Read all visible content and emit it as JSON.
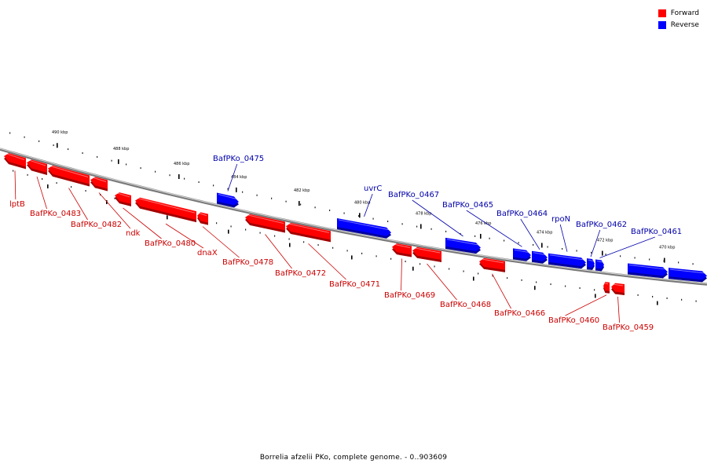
{
  "title": "Borrelia afzelii PKo, complete genome. - 0..903609",
  "colors": {
    "forward": "#ff0000",
    "reverse": "#0000ff",
    "forward_label": "#cc0000",
    "reverse_label": "#0000aa",
    "backbone": "#999999"
  },
  "legend": [
    {
      "label": "Forward",
      "color": "#ff0000"
    },
    {
      "label": "Reverse",
      "color": "#0000ff"
    }
  ],
  "ticks": [
    "490 kbp",
    "488 kbp",
    "486 kbp",
    "484 kbp",
    "482 kbp",
    "480 kbp",
    "478 kbp",
    "476 kbp",
    "474 kbp",
    "472 kbp",
    "470 kbp"
  ],
  "genes": [
    {
      "name": "lptB",
      "strand": "forward"
    },
    {
      "name": "BafPKo_0483",
      "strand": "forward"
    },
    {
      "name": "BafPKo_0482",
      "strand": "forward"
    },
    {
      "name": "ndk",
      "strand": "forward"
    },
    {
      "name": "BafPKo_0480",
      "strand": "forward"
    },
    {
      "name": "dnaX",
      "strand": "forward"
    },
    {
      "name": "BafPKo_0478",
      "strand": "forward"
    },
    {
      "name": "BafPKo_0472",
      "strand": "forward"
    },
    {
      "name": "BafPKo_0471",
      "strand": "forward"
    },
    {
      "name": "BafPKo_0469",
      "strand": "forward"
    },
    {
      "name": "BafPKo_0468",
      "strand": "forward"
    },
    {
      "name": "BafPKo_0466",
      "strand": "forward"
    },
    {
      "name": "BafPKo_0460",
      "strand": "forward"
    },
    {
      "name": "BafPKo_0459",
      "strand": "forward"
    },
    {
      "name": "BafPKo_0475",
      "strand": "reverse"
    },
    {
      "name": "uvrC",
      "strand": "reverse"
    },
    {
      "name": "BafPKo_0467",
      "strand": "reverse"
    },
    {
      "name": "BafPKo_0465",
      "strand": "reverse"
    },
    {
      "name": "BafPKo_0464",
      "strand": "reverse"
    },
    {
      "name": "rpoN",
      "strand": "reverse"
    },
    {
      "name": "BafPKo_0462",
      "strand": "reverse"
    },
    {
      "name": "BafPKo_0461",
      "strand": "reverse"
    }
  ]
}
